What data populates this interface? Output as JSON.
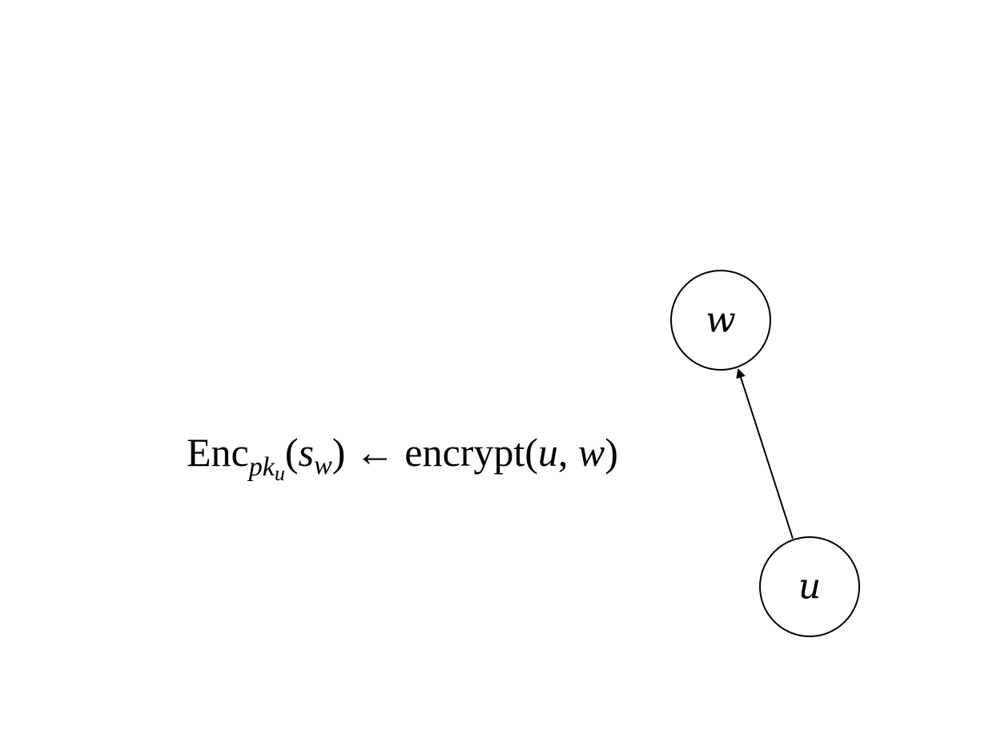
{
  "nodes": {
    "w": {
      "label": "w"
    },
    "u": {
      "label": "u"
    }
  },
  "edge": {
    "from": "u",
    "to": "w"
  },
  "annotation": {
    "enc": "Enc",
    "sub_pk": "pk",
    "sub_u": "u",
    "open_paren": "(",
    "s": "s",
    "sub_w": "w",
    "close_paren": ")",
    "arrow": "←",
    "encrypt": "encrypt",
    "args_open": "(",
    "arg_u": "u",
    "comma": ", ",
    "arg_w": "w",
    "args_close": ")"
  },
  "colors": {
    "stroke": "#000000",
    "background": "#ffffff"
  }
}
